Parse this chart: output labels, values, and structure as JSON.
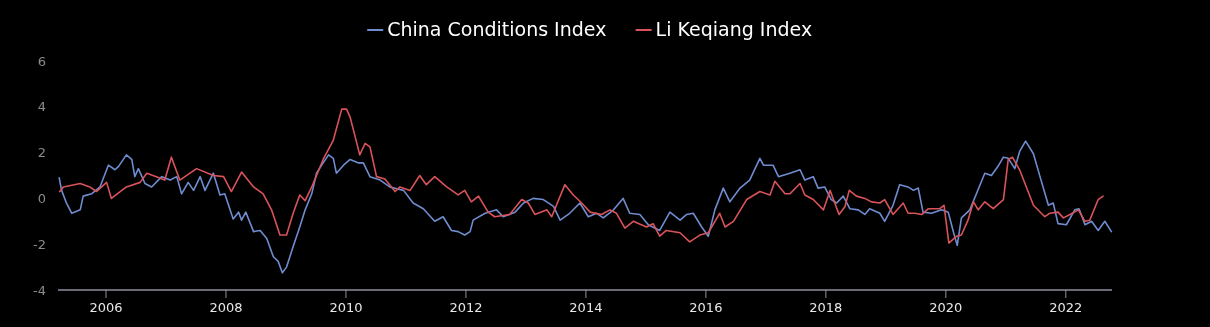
{
  "chart_data": {
    "type": "line",
    "xlim": [
      2005.2,
      2022.77
    ],
    "xticks": [
      2006,
      2008,
      2010,
      2012,
      2014,
      2016,
      2018,
      2020,
      2022
    ],
    "ylim": [
      -4,
      6
    ],
    "yticks": [
      -4,
      -2,
      0,
      2,
      4,
      6
    ],
    "grid": false,
    "legend": "top",
    "marker": "none",
    "line_style": "solid",
    "series": [
      {
        "name": "China Conditions Index",
        "color": "#6f8ccf",
        "x": [
          2005.22,
          2005.26,
          2005.34,
          2005.43,
          2005.57,
          2005.62,
          2005.76,
          2005.9,
          2006.04,
          2006.15,
          2006.21,
          2006.34,
          2006.43,
          2006.48,
          2006.54,
          2006.65,
          2006.76,
          2006.93,
          2007.07,
          2007.18,
          2007.26,
          2007.37,
          2007.46,
          2007.57,
          2007.65,
          2007.79,
          2007.9,
          2007.98,
          2008.12,
          2008.21,
          2008.26,
          2008.33,
          2008.46,
          2008.57,
          2008.68,
          2008.79,
          2008.87,
          2008.94,
          2009.01,
          2009.12,
          2009.23,
          2009.32,
          2009.43,
          2009.51,
          2009.62,
          2009.71,
          2009.79,
          2009.84,
          2009.96,
          2010.07,
          2010.21,
          2010.29,
          2010.4,
          2010.57,
          2010.73,
          2010.96,
          2011.12,
          2011.29,
          2011.48,
          2011.62,
          2011.76,
          2011.87,
          2011.98,
          2012.07,
          2012.12,
          2012.32,
          2012.51,
          2012.62,
          2012.82,
          2012.96,
          2013.12,
          2013.29,
          2013.46,
          2013.57,
          2013.73,
          2013.9,
          2014.04,
          2014.18,
          2014.29,
          2014.46,
          2014.62,
          2014.73,
          2014.9,
          2015.04,
          2015.23,
          2015.4,
          2015.57,
          2015.68,
          2015.79,
          2015.93,
          2016.04,
          2016.15,
          2016.29,
          2016.4,
          2016.57,
          2016.73,
          2016.9,
          2016.96,
          2017.12,
          2017.21,
          2017.4,
          2017.57,
          2017.65,
          2017.79,
          2017.87,
          2017.98,
          2018.09,
          2018.18,
          2018.29,
          2018.4,
          2018.54,
          2018.65,
          2018.73,
          2018.9,
          2018.98,
          2019.12,
          2019.23,
          2019.37,
          2019.46,
          2019.54,
          2019.62,
          2019.76,
          2019.93,
          2020.04,
          2020.13,
          2020.19,
          2020.26,
          2020.4,
          2020.51,
          2020.65,
          2020.76,
          2020.87,
          2020.96,
          2021.04,
          2021.15,
          2021.23,
          2021.33,
          2021.46,
          2021.57,
          2021.71,
          2021.79,
          2021.87,
          2022.01,
          2022.15,
          2022.22,
          2022.32,
          2022.43,
          2022.54,
          2022.65,
          2022.76
        ],
        "values": [
          0.9,
          0.35,
          -0.2,
          -0.65,
          -0.5,
          0.1,
          0.2,
          0.5,
          1.45,
          1.25,
          1.4,
          1.9,
          1.7,
          0.95,
          1.3,
          0.65,
          0.5,
          0.95,
          0.8,
          0.95,
          0.2,
          0.7,
          0.35,
          0.95,
          0.35,
          1.1,
          0.15,
          0.2,
          -0.9,
          -0.6,
          -0.95,
          -0.6,
          -1.45,
          -1.4,
          -1.75,
          -2.55,
          -2.75,
          -3.25,
          -3.0,
          -2.1,
          -1.25,
          -0.5,
          0.2,
          1.1,
          1.55,
          1.9,
          1.75,
          1.1,
          1.45,
          1.7,
          1.55,
          1.55,
          0.95,
          0.8,
          0.5,
          0.35,
          -0.2,
          -0.45,
          -1.0,
          -0.8,
          -1.4,
          -1.45,
          -1.6,
          -1.45,
          -0.95,
          -0.65,
          -0.5,
          -0.8,
          -0.6,
          -0.2,
          0.0,
          -0.05,
          -0.35,
          -0.95,
          -0.65,
          -0.2,
          -0.8,
          -0.65,
          -0.85,
          -0.5,
          0.0,
          -0.65,
          -0.7,
          -1.15,
          -1.4,
          -0.6,
          -0.95,
          -0.7,
          -0.65,
          -1.25,
          -1.65,
          -0.5,
          0.45,
          -0.15,
          0.45,
          0.8,
          1.75,
          1.45,
          1.45,
          0.95,
          1.1,
          1.25,
          0.8,
          0.95,
          0.45,
          0.5,
          -0.05,
          -0.2,
          0.1,
          -0.45,
          -0.5,
          -0.7,
          -0.45,
          -0.65,
          -1.0,
          -0.3,
          0.6,
          0.5,
          0.35,
          0.45,
          -0.6,
          -0.65,
          -0.5,
          -0.6,
          -1.5,
          -2.05,
          -0.85,
          -0.5,
          0.2,
          1.1,
          1.0,
          1.4,
          1.8,
          1.75,
          1.3,
          2.05,
          2.5,
          1.95,
          0.95,
          -0.3,
          -0.2,
          -1.1,
          -1.15,
          -0.5,
          -0.45,
          -1.15,
          -1.0,
          -1.4,
          -1.0,
          -1.45
        ]
      },
      {
        "name": "Li Keqiang Index",
        "color": "#d9535a",
        "x": [
          2005.23,
          2005.29,
          2005.57,
          2005.73,
          2005.84,
          2006.01,
          2006.09,
          2006.34,
          2006.57,
          2006.68,
          2006.84,
          2006.98,
          2007.09,
          2007.23,
          2007.51,
          2007.79,
          2007.96,
          2008.09,
          2008.26,
          2008.46,
          2008.62,
          2008.76,
          2008.9,
          2009.01,
          2009.12,
          2009.23,
          2009.32,
          2009.43,
          2009.62,
          2009.79,
          2009.93,
          2010.01,
          2010.07,
          2010.23,
          2010.32,
          2010.4,
          2010.51,
          2010.65,
          2010.82,
          2010.9,
          2011.07,
          2011.23,
          2011.34,
          2011.48,
          2011.68,
          2011.87,
          2011.98,
          2012.09,
          2012.21,
          2012.37,
          2012.48,
          2012.73,
          2012.93,
          2013.04,
          2013.15,
          2013.35,
          2013.43,
          2013.65,
          2013.79,
          2013.93,
          2014.07,
          2014.26,
          2014.4,
          2014.51,
          2014.65,
          2014.79,
          2015.01,
          2015.12,
          2015.23,
          2015.34,
          2015.57,
          2015.73,
          2015.9,
          2016.04,
          2016.23,
          2016.32,
          2016.46,
          2016.68,
          2016.9,
          2017.07,
          2017.15,
          2017.32,
          2017.4,
          2017.57,
          2017.65,
          2017.79,
          2017.96,
          2018.07,
          2018.22,
          2018.32,
          2018.39,
          2018.51,
          2018.65,
          2018.76,
          2018.9,
          2018.98,
          2019.12,
          2019.29,
          2019.37,
          2019.48,
          2019.6,
          2019.71,
          2019.9,
          2019.97,
          2020.05,
          2020.18,
          2020.26,
          2020.37,
          2020.46,
          2020.54,
          2020.65,
          2020.79,
          2020.96,
          2021.04,
          2021.11,
          2021.23,
          2021.46,
          2021.65,
          2021.73,
          2021.87,
          2021.96,
          2022.07,
          2022.21,
          2022.32,
          2022.4,
          2022.54,
          2022.62
        ],
        "values": [
          0.3,
          0.5,
          0.65,
          0.5,
          0.3,
          0.7,
          0.0,
          0.5,
          0.7,
          1.1,
          0.95,
          0.8,
          1.8,
          0.8,
          1.3,
          1.0,
          0.95,
          0.3,
          1.15,
          0.5,
          0.2,
          -0.5,
          -1.6,
          -1.6,
          -0.65,
          0.15,
          -0.1,
          0.5,
          1.7,
          2.55,
          3.9,
          3.9,
          3.55,
          1.9,
          2.4,
          2.25,
          0.95,
          0.85,
          0.3,
          0.5,
          0.35,
          1.0,
          0.6,
          0.95,
          0.5,
          0.15,
          0.35,
          -0.15,
          0.1,
          -0.6,
          -0.8,
          -0.7,
          -0.05,
          -0.2,
          -0.7,
          -0.5,
          -0.8,
          0.6,
          0.15,
          -0.2,
          -0.6,
          -0.7,
          -0.5,
          -0.65,
          -1.3,
          -1.0,
          -1.25,
          -1.1,
          -1.65,
          -1.4,
          -1.5,
          -1.9,
          -1.6,
          -1.5,
          -0.65,
          -1.25,
          -1.0,
          -0.05,
          0.3,
          0.15,
          0.75,
          0.2,
          0.2,
          0.65,
          0.15,
          -0.05,
          -0.5,
          0.35,
          -0.7,
          -0.35,
          0.35,
          0.1,
          0.0,
          -0.15,
          -0.2,
          -0.05,
          -0.7,
          -0.2,
          -0.65,
          -0.65,
          -0.7,
          -0.45,
          -0.45,
          -0.3,
          -1.95,
          -1.65,
          -1.6,
          -0.95,
          -0.15,
          -0.5,
          -0.15,
          -0.45,
          -0.05,
          1.7,
          1.8,
          1.25,
          -0.3,
          -0.8,
          -0.65,
          -0.6,
          -0.85,
          -0.7,
          -0.5,
          -1.0,
          -0.95,
          -0.05,
          0.1
        ]
      }
    ]
  }
}
